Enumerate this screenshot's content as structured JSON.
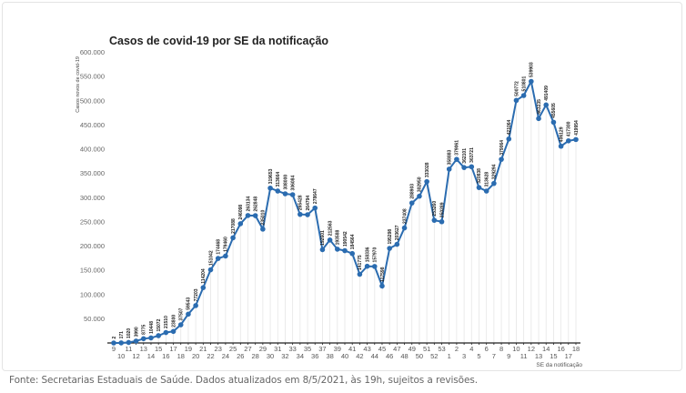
{
  "chart_data": {
    "type": "line",
    "title": "Casos de covid-19 por SE da notificação",
    "ylabel": "Casos novos de covid-19",
    "xlabel": "SE da notificação",
    "ylim": [
      0,
      600000
    ],
    "yticks": [
      50000,
      100000,
      150000,
      200000,
      250000,
      300000,
      350000,
      400000,
      450000,
      500000,
      550000,
      600000
    ],
    "ytick_labels": [
      "50.000",
      "100.000",
      "150.000",
      "200.000",
      "250.000",
      "300.000",
      "350.000",
      "400.000",
      "450.000",
      "500.000",
      "550.000",
      "600.000"
    ],
    "grid": "vertical drop lines",
    "line_color": "#2b6cb0",
    "categories": [
      "9",
      "10",
      "11",
      "12",
      "13",
      "14",
      "15",
      "16",
      "17",
      "18",
      "19",
      "20",
      "21",
      "22",
      "23",
      "24",
      "25",
      "26",
      "27",
      "28",
      "29",
      "30",
      "31",
      "32",
      "33",
      "34",
      "35",
      "36",
      "37",
      "38",
      "39",
      "40",
      "41",
      "42",
      "43",
      "44",
      "45",
      "46",
      "47",
      "48",
      "49",
      "50",
      "51",
      "52",
      "53",
      "1",
      "2",
      "3",
      "4",
      "5",
      "6",
      "7",
      "8",
      "9",
      "10",
      "11",
      "12",
      "13",
      "14",
      "15",
      "16",
      "17",
      "18"
    ],
    "values": [
      2,
      171,
      1020,
      3990,
      8775,
      10448,
      15072,
      21510,
      23800,
      37507,
      59543,
      77203,
      114204,
      151042,
      174468,
      179460,
      217088,
      246098,
      263134,
      262848,
      235010,
      319653,
      313664,
      308000,
      306084,
      265428,
      264794,
      278647,
      192601,
      212563,
      193588,
      190542,
      184564,
      141775,
      158336,
      157970,
      117598,
      195298,
      203627,
      237408,
      288903,
      302950,
      333028,
      253260,
      250289,
      358883,
      379061,
      362101,
      363721,
      320838,
      313628,
      329294,
      379064,
      421064,
      500772,
      510801,
      539903,
      463235,
      491409,
      455605,
      406129,
      417300,
      419954
    ]
  },
  "footer": {
    "source_text": "Fonte: Secretarias Estaduais de Saúde. Dados atualizados em 8/5/2021, às 19h, sujeitos a revisões."
  }
}
